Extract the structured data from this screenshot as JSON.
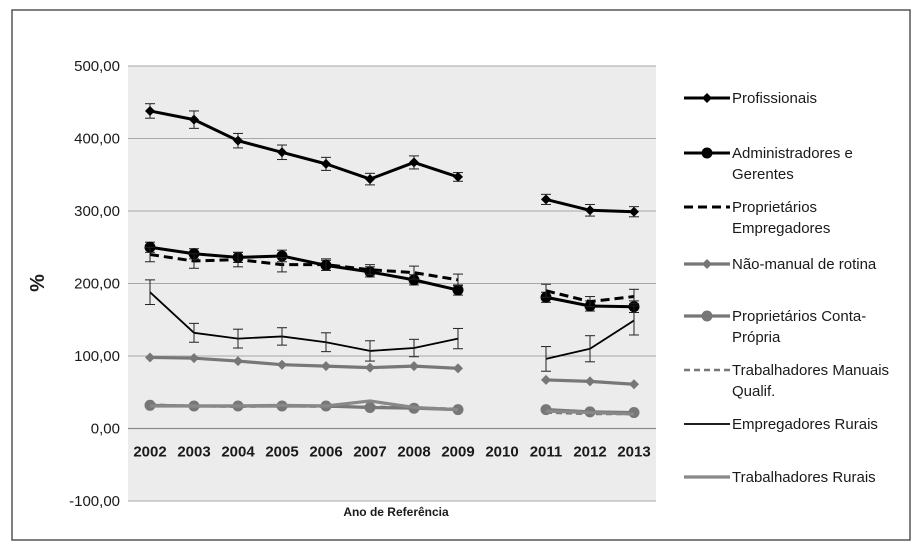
{
  "chart_data": {
    "type": "line",
    "title": "",
    "xlabel": "Ano de Referência",
    "ylabel": "%",
    "ylim": [
      -100,
      500
    ],
    "yticks": [
      "-100,00",
      "0,00",
      "100,00",
      "200,00",
      "300,00",
      "400,00",
      "500,00"
    ],
    "categories": [
      "2002",
      "2003",
      "2004",
      "2005",
      "2006",
      "2007",
      "2008",
      "2009",
      "2010",
      "2011",
      "2012",
      "2013"
    ],
    "grid": true,
    "legend_position": "right",
    "series": [
      {
        "name": "Profissionais",
        "color": "#000000",
        "marker": "diamond",
        "dash": "solid",
        "values": [
          438,
          426,
          397,
          381,
          365,
          344,
          367,
          347,
          null,
          316,
          301,
          299
        ],
        "errors": [
          10,
          12,
          10,
          10,
          9,
          8,
          9,
          6,
          null,
          7,
          8,
          7
        ]
      },
      {
        "name": "Administradores e Gerentes",
        "color": "#000000",
        "marker": "circle",
        "dash": "solid",
        "values": [
          250,
          241,
          236,
          238,
          225,
          216,
          205,
          191,
          null,
          181,
          169,
          168
        ],
        "errors": [
          7,
          7,
          7,
          8,
          7,
          7,
          7,
          7,
          null,
          7,
          7,
          8
        ]
      },
      {
        "name": "Proprietários Empregadores",
        "color": "#000000",
        "marker": "none",
        "dash": "dashed",
        "values": [
          240,
          231,
          233,
          226,
          226,
          219,
          215,
          205,
          null,
          190,
          175,
          182
        ],
        "errors": [
          10,
          10,
          10,
          10,
          8,
          7,
          9,
          8,
          null,
          9,
          7,
          10
        ]
      },
      {
        "name": "Não-manual de rotina",
        "color": "#777777",
        "marker": "diamond",
        "dash": "solid",
        "values": [
          98,
          97,
          93,
          88,
          86,
          84,
          86,
          83,
          null,
          67,
          65,
          61
        ],
        "errors": [
          null,
          null,
          null,
          null,
          null,
          null,
          null,
          null,
          null,
          null,
          null,
          null
        ]
      },
      {
        "name": "Proprietários Conta-Própria",
        "color": "#777777",
        "marker": "circle",
        "dash": "solid",
        "values": [
          32,
          31,
          31,
          31,
          31,
          29,
          28,
          26,
          null,
          26,
          23,
          22
        ],
        "errors": [
          null,
          null,
          null,
          null,
          null,
          null,
          null,
          null,
          null,
          null,
          null,
          null
        ]
      },
      {
        "name": "Trabalhadores Manuais Qualif.",
        "color": "#777777",
        "marker": "none",
        "dash": "dashed",
        "values": [
          33,
          31,
          30,
          31,
          30,
          30,
          29,
          27,
          null,
          22,
          20,
          20
        ],
        "errors": [
          null,
          null,
          null,
          null,
          null,
          null,
          null,
          null,
          null,
          null,
          null,
          null
        ]
      },
      {
        "name": "Empregadores Rurais",
        "color": "#000000",
        "marker": "none",
        "dash": "thin",
        "values": [
          188,
          132,
          124,
          127,
          119,
          107,
          111,
          124,
          null,
          96,
          110,
          149
        ],
        "errors": [
          17,
          13,
          13,
          12,
          13,
          14,
          12,
          14,
          null,
          17,
          18,
          20
        ]
      },
      {
        "name": "Trabalhadores Rurais",
        "color": "#888888",
        "marker": "none",
        "dash": "solid",
        "values": [
          31,
          31,
          31,
          32,
          31,
          38,
          29,
          26,
          null,
          24,
          22,
          20
        ],
        "errors": [
          null,
          null,
          null,
          null,
          null,
          null,
          null,
          null,
          null,
          null,
          null,
          null
        ]
      }
    ]
  },
  "legend_labels": {
    "s0": [
      "Profissionais"
    ],
    "s1": [
      "Administradores e",
      "Gerentes"
    ],
    "s2": [
      "Proprietários",
      "Empregadores"
    ],
    "s3": [
      "Não-manual de rotina"
    ],
    "s4": [
      "Proprietários Conta-",
      "Própria"
    ],
    "s5": [
      "Trabalhadores Manuais",
      "Qualif."
    ],
    "s6": [
      "Empregadores Rurais"
    ],
    "s7": [
      "Trabalhadores Rurais"
    ]
  }
}
